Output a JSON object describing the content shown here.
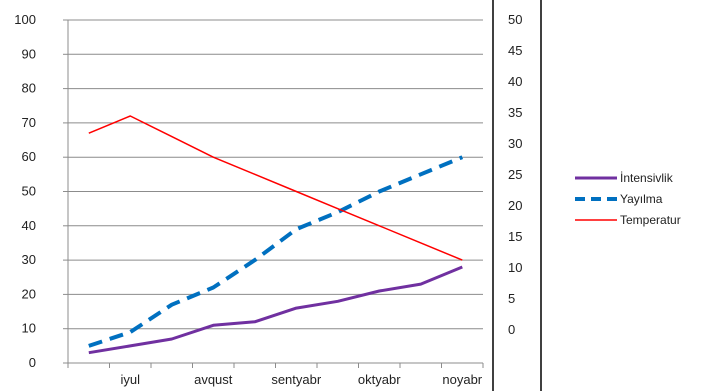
{
  "chart_data": {
    "type": "line",
    "title": "",
    "xlabel": "",
    "ylabel": "",
    "y2label": "",
    "categories": [
      "",
      "iyul",
      "",
      "avqust",
      "",
      "sentyabr",
      "",
      "oktyabr",
      "",
      "noyabr"
    ],
    "ylim": [
      0,
      100
    ],
    "yticks": [
      0,
      10,
      20,
      30,
      40,
      50,
      60,
      70,
      80,
      90,
      100
    ],
    "y2ticks": [
      0,
      5,
      10,
      15,
      20,
      25,
      30,
      35,
      40,
      45,
      50
    ],
    "grid": true,
    "legend_position": "right",
    "series": [
      {
        "name": "İntensivlik",
        "color": "#7030a0",
        "style": "solid",
        "width": 3,
        "values": [
          3,
          5,
          7,
          11,
          12,
          16,
          18,
          21,
          23,
          28
        ]
      },
      {
        "name": "Yayılma",
        "color": "#0070c0",
        "style": "dashed",
        "width": 4,
        "values": [
          5,
          9,
          17,
          22,
          30,
          39,
          44,
          50,
          55,
          60
        ]
      },
      {
        "name": "Temperatur",
        "color": "#ff0000",
        "style": "solid",
        "width": 1.5,
        "values": [
          67,
          72,
          66,
          60,
          55,
          50,
          45,
          40,
          35,
          30
        ]
      }
    ]
  }
}
